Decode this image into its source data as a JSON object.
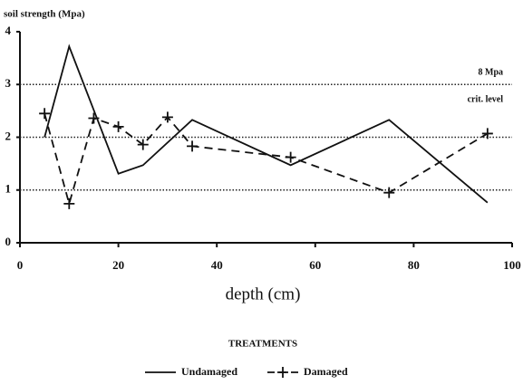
{
  "chart_data": {
    "type": "line",
    "title": "soil strength (Mpa)",
    "xlabel": "depth (cm)",
    "annotations": [
      "8 Mpa",
      "crit. level"
    ],
    "legend_title": "TREATMENTS",
    "xlim": [
      0,
      100
    ],
    "xticks": [
      0,
      20,
      40,
      60,
      80,
      100
    ],
    "ylim": [
      0,
      4
    ],
    "yticks": [
      0,
      1,
      2,
      3,
      4
    ],
    "grid": true,
    "series": [
      {
        "name": "Undamaged",
        "color": "#111111",
        "dash": false,
        "marker": false,
        "x": [
          5,
          10,
          20,
          25,
          35,
          55,
          75,
          95
        ],
        "values": [
          2.0,
          3.72,
          1.31,
          1.47,
          2.33,
          1.47,
          2.33,
          0.76
        ]
      },
      {
        "name": "Damaged",
        "color": "#111111",
        "dash": true,
        "marker": true,
        "x": [
          5,
          10,
          15,
          20,
          25,
          30,
          35,
          55,
          75,
          95
        ],
        "values": [
          2.45,
          0.74,
          2.36,
          2.2,
          1.86,
          2.38,
          1.83,
          1.62,
          0.95,
          2.07
        ]
      }
    ]
  }
}
